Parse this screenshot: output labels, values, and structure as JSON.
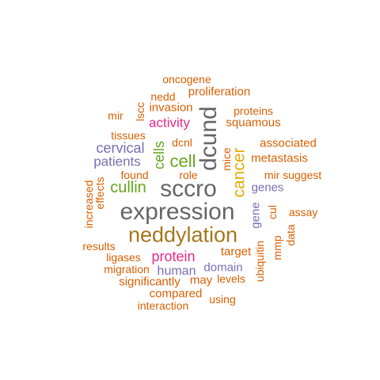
{
  "colors": {
    "orange": "#d95f02",
    "purple": "#7570b3",
    "magenta": "#e7298a",
    "green": "#66a61e",
    "gold": "#e6ab02",
    "brown": "#a6761d",
    "gray": "#666666"
  },
  "words": [
    {
      "text": "oncogene",
      "color": "orange"
    },
    {
      "text": "nedd",
      "color": "orange"
    },
    {
      "text": "proliferation",
      "color": "orange"
    },
    {
      "text": "lscc",
      "color": "orange"
    },
    {
      "text": "invasion",
      "color": "orange"
    },
    {
      "text": "proteins",
      "color": "orange"
    },
    {
      "text": "mir",
      "color": "orange"
    },
    {
      "text": "activity",
      "color": "magenta"
    },
    {
      "text": "squamous",
      "color": "orange"
    },
    {
      "text": "dcund",
      "color": "gray"
    },
    {
      "text": "tissues",
      "color": "orange"
    },
    {
      "text": "dcnl",
      "color": "orange"
    },
    {
      "text": "associated",
      "color": "orange"
    },
    {
      "text": "cervical",
      "color": "purple"
    },
    {
      "text": "cells",
      "color": "green"
    },
    {
      "text": "cell",
      "color": "green"
    },
    {
      "text": "mice",
      "color": "orange"
    },
    {
      "text": "cancer",
      "color": "gold"
    },
    {
      "text": "patients",
      "color": "purple"
    },
    {
      "text": "metastasis",
      "color": "orange"
    },
    {
      "text": "found",
      "color": "orange"
    },
    {
      "text": "role",
      "color": "orange"
    },
    {
      "text": "mir suggest",
      "color": "orange"
    },
    {
      "text": "cullin",
      "color": "green"
    },
    {
      "text": "sccro",
      "color": "gray"
    },
    {
      "text": "genes",
      "color": "purple"
    },
    {
      "text": "increased",
      "color": "orange"
    },
    {
      "text": "effects",
      "color": "orange"
    },
    {
      "text": "expression",
      "color": "gray"
    },
    {
      "text": "gene",
      "color": "purple"
    },
    {
      "text": "cul",
      "color": "orange"
    },
    {
      "text": "assay",
      "color": "orange"
    },
    {
      "text": "neddylation",
      "color": "brown"
    },
    {
      "text": "data",
      "color": "orange"
    },
    {
      "text": "mmp",
      "color": "orange"
    },
    {
      "text": "results",
      "color": "orange"
    },
    {
      "text": "target",
      "color": "orange"
    },
    {
      "text": "ubiquitin",
      "color": "orange"
    },
    {
      "text": "ligases",
      "color": "orange"
    },
    {
      "text": "protein",
      "color": "magenta"
    },
    {
      "text": "domain",
      "color": "purple"
    },
    {
      "text": "migration",
      "color": "orange"
    },
    {
      "text": "human",
      "color": "purple"
    },
    {
      "text": "levels",
      "color": "orange"
    },
    {
      "text": "significantly",
      "color": "orange"
    },
    {
      "text": "may",
      "color": "orange"
    },
    {
      "text": "compared",
      "color": "orange"
    },
    {
      "text": "using",
      "color": "orange"
    },
    {
      "text": "interaction",
      "color": "orange"
    }
  ]
}
